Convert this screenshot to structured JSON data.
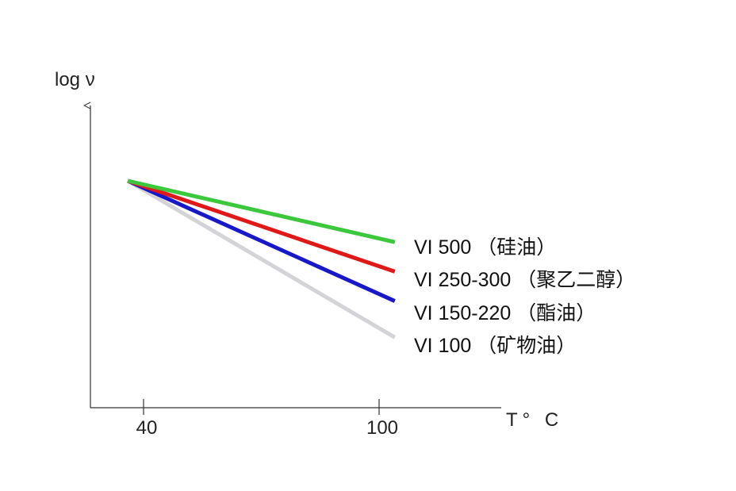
{
  "chart_data": {
    "type": "line",
    "xlabel": "T° C",
    "ylabel": "log ν",
    "x_ticks": [
      "40",
      "100"
    ],
    "x_tick_values": [
      40,
      100
    ],
    "xlim": [
      27,
      127
    ],
    "ylim": [
      0,
      100
    ],
    "grid": false,
    "legend": "right",
    "series": [
      {
        "name": "VI 500 （硅油）",
        "x": [
          36,
          104
        ],
        "y": [
          100,
          73
        ],
        "color": "#3cc83c"
      },
      {
        "name": "VI 250-300 （聚乙二醇）",
        "x": [
          36,
          104
        ],
        "y": [
          100,
          60
        ],
        "color": "#e01818"
      },
      {
        "name": "VI 150-220 （酯油）",
        "x": [
          36,
          104
        ],
        "y": [
          100,
          47
        ],
        "color": "#1818c8"
      },
      {
        "name": "VI 100 （矿物油）",
        "x": [
          36,
          104
        ],
        "y": [
          100,
          31
        ],
        "color": "#d4d4d8"
      }
    ]
  }
}
